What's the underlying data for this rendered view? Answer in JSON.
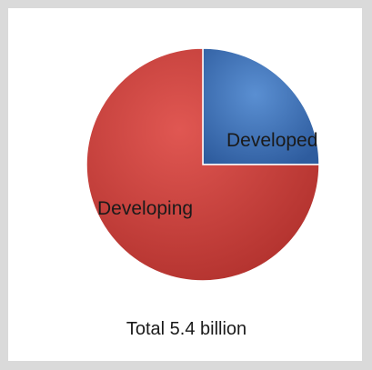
{
  "chart_data": {
    "type": "pie",
    "categories": [
      "Developed",
      "Developing"
    ],
    "values": [
      25,
      75
    ],
    "colors": [
      "#3f73b8",
      "#d23b36"
    ],
    "title": "",
    "footer": "Total  5.4 billion",
    "legend": "none"
  }
}
